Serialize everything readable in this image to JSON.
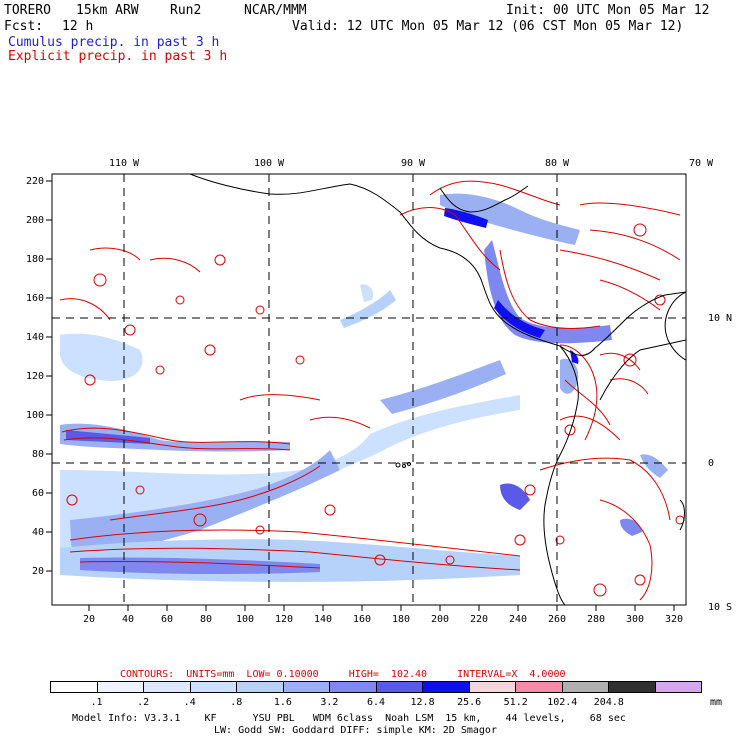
{
  "header": {
    "model": "TORERO",
    "resolution": "15km ARW",
    "run": "Run2",
    "org": "NCAR/MMM",
    "init": "Init: 00 UTC Mon 05 Mar 12",
    "fcst_label": "Fcst:",
    "fcst_hours": "12 h",
    "valid": "Valid: 12 UTC Mon 05 Mar 12 (06 CST Mon 05 Mar 12)",
    "field1": "Cumulus precip. in past 3 h",
    "field2": "Explicit precip. in past 3 h"
  },
  "colors": {
    "field1": "#2222cc",
    "field2": "#dd0000",
    "coast": "#000000",
    "contour": "#dd0000"
  },
  "map": {
    "lon_labels": [
      "110 W",
      "100 W",
      "90 W",
      "80 W",
      "70 W"
    ],
    "lat_labels": [
      "10 N",
      "0",
      "10 S"
    ],
    "y_ticks": [
      "220",
      "200",
      "180",
      "160",
      "140",
      "120",
      "100",
      "80",
      "60",
      "40",
      "20"
    ],
    "x_ticks": [
      "20",
      "40",
      "60",
      "80",
      "100",
      "120",
      "140",
      "160",
      "180",
      "200",
      "220",
      "240",
      "260",
      "280",
      "300",
      "320"
    ]
  },
  "contours": {
    "text": "CONTOURS:  UNITS=mm  LOW= 0.10000     HIGH=  102.40     INTERVAL=X  4.0000"
  },
  "colorbar": {
    "colors": [
      "#ffffff",
      "#eef3ff",
      "#dde8ff",
      "#cce0ff",
      "#b6d2fb",
      "#9ab0f2",
      "#7f88ee",
      "#5a5ae8",
      "#1010ee",
      "#f3d6dc",
      "#f28aa8",
      "#b0b0b0",
      "#303030",
      "#d6a6f0"
    ],
    "labels": [
      ".1",
      ".2",
      ".4",
      ".8",
      "1.6",
      "3.2",
      "6.4",
      "12.8",
      "25.6",
      "51.2",
      "102.4",
      "204.8"
    ],
    "units": "mm"
  },
  "footer": {
    "line1": "Model Info: V3.3.1    KF      YSU PBL   WDM 6class  Noah LSM  15 km,    44 levels,    68 sec",
    "line2": "LW: Godd SW: Goddard DIFF: simple KM: 2D Smagor"
  }
}
